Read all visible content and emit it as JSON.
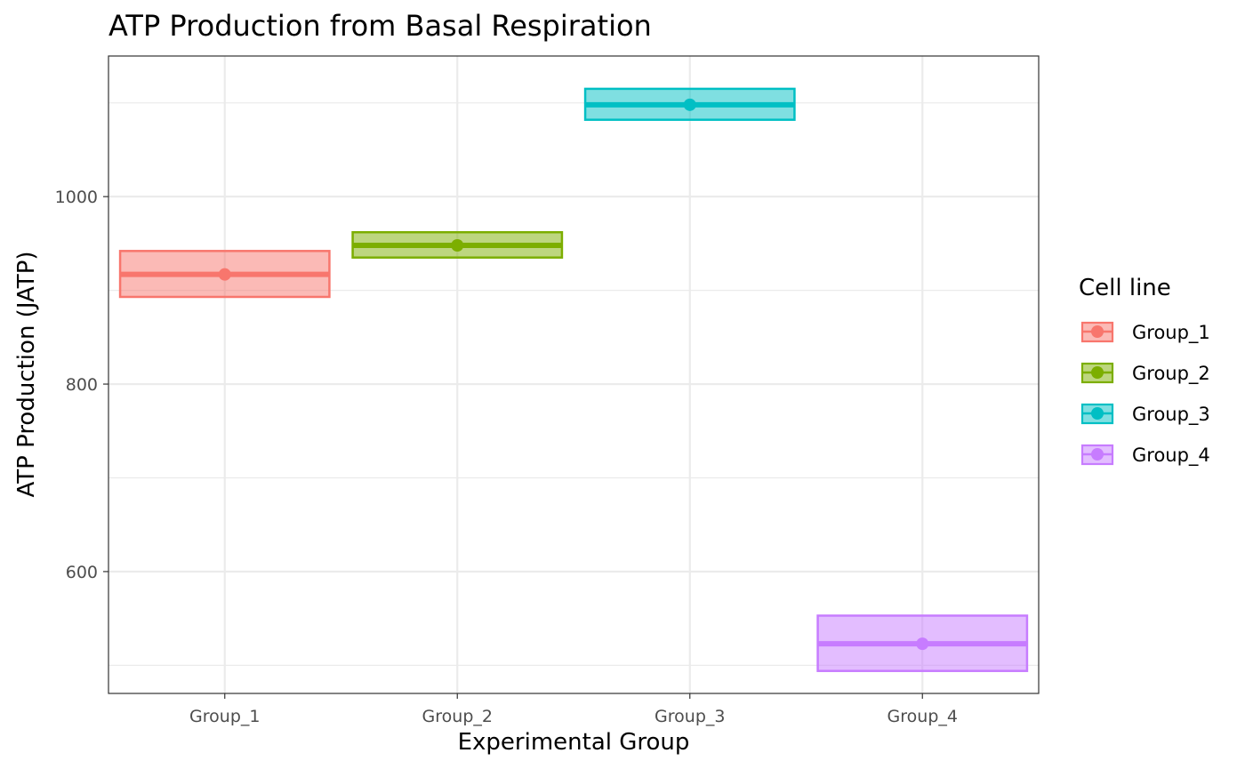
{
  "chart_data": {
    "type": "crossbar",
    "title": "ATP Production from Basal Respiration",
    "xlabel": "Experimental Group",
    "ylabel": "ATP Production (JATP)",
    "categories": [
      "Group_1",
      "Group_2",
      "Group_3",
      "Group_4"
    ],
    "ylim": [
      470,
      1150
    ],
    "yticks": [
      600,
      800,
      1000
    ],
    "grid": true,
    "legend": {
      "title": "Cell line",
      "placement": "right"
    },
    "series": [
      {
        "name": "Group_1",
        "category": "Group_1",
        "mean": 917,
        "lower": 893,
        "upper": 942,
        "color": "#F8766D"
      },
      {
        "name": "Group_2",
        "category": "Group_2",
        "mean": 948,
        "lower": 935,
        "upper": 962,
        "color": "#7CAE00"
      },
      {
        "name": "Group_3",
        "category": "Group_3",
        "mean": 1098,
        "lower": 1082,
        "upper": 1115,
        "color": "#00BFC4"
      },
      {
        "name": "Group_4",
        "category": "Group_4",
        "mean": 523,
        "lower": 494,
        "upper": 553,
        "color": "#C77CFF"
      }
    ]
  }
}
